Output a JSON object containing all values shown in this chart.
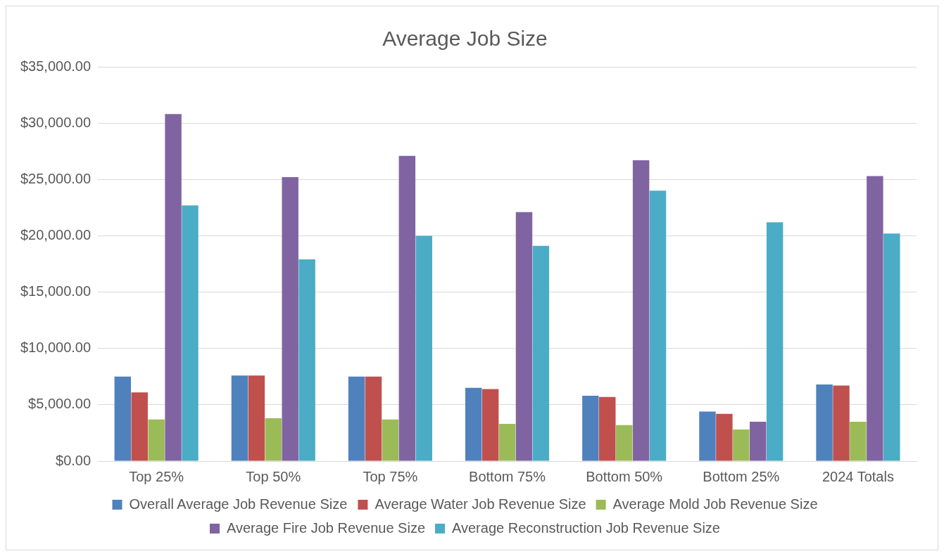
{
  "chart_data": {
    "type": "bar",
    "title": "Average Job Size",
    "categories": [
      "Top 25%",
      "Top 50%",
      "Top 75%",
      "Bottom 75%",
      "Bottom 50%",
      "Bottom 25%",
      "2024 Totals"
    ],
    "series": [
      {
        "name": "Overall Average Job Revenue Size",
        "color": "#4f81bd",
        "values": [
          7500,
          7600,
          7500,
          6500,
          5800,
          4400,
          6800
        ]
      },
      {
        "name": "Average Water Job Revenue Size",
        "color": "#c0504d",
        "values": [
          6100,
          7600,
          7500,
          6400,
          5700,
          4200,
          6700
        ]
      },
      {
        "name": "Average Mold Job Revenue Size",
        "color": "#9bbb59",
        "values": [
          3700,
          3800,
          3700,
          3300,
          3200,
          2800,
          3500
        ]
      },
      {
        "name": "Average Fire Job Revenue Size",
        "color": "#8064a2",
        "values": [
          30800,
          25200,
          27100,
          22100,
          26700,
          3500,
          25300
        ]
      },
      {
        "name": "Average Reconstruction Job Revenue Size",
        "color": "#4bacc6",
        "values": [
          22700,
          17900,
          20000,
          19100,
          24000,
          21200,
          20200
        ]
      }
    ],
    "ylim": [
      0,
      35000
    ],
    "yticks": [
      {
        "value": 0,
        "label": "$0.00"
      },
      {
        "value": 5000,
        "label": "$5,000.00"
      },
      {
        "value": 10000,
        "label": "$10,000.00"
      },
      {
        "value": 15000,
        "label": "$15,000.00"
      },
      {
        "value": 20000,
        "label": "$20,000.00"
      },
      {
        "value": 25000,
        "label": "$25,000.00"
      },
      {
        "value": 30000,
        "label": "$30,000.00"
      },
      {
        "value": 35000,
        "label": "$35,000.00"
      }
    ],
    "grid": "y",
    "legend": "bottom"
  }
}
